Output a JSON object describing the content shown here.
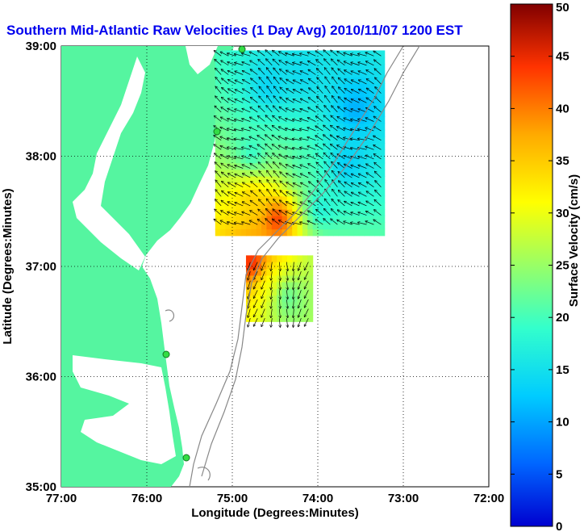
{
  "chart_data": {
    "type": "heatmap",
    "title": "Southern Mid-Atlantic Raw Velocities (1 Day Avg) 2010/11/07 1200 EST",
    "xlabel": "Longitude (Degrees:Minutes)",
    "ylabel": "Latitude (Degrees:Minutes)",
    "x_ticks": [
      "77:00",
      "76:00",
      "75:00",
      "74:00",
      "73:00",
      "72:00"
    ],
    "y_ticks": [
      "39:00",
      "38:00",
      "37:00",
      "36:00",
      "35:00"
    ],
    "xlim": [
      -77,
      -72
    ],
    "ylim": [
      35,
      39
    ],
    "grid": true,
    "colorbar": {
      "label": "Surface Velocity (cm/s)",
      "min": 0,
      "max": 50,
      "ticks": [
        "0",
        "5",
        "10",
        "15",
        "20",
        "25",
        "30",
        "35",
        "40",
        "45",
        "50"
      ]
    },
    "regions": [
      {
        "lon": -74.6,
        "lat": 38.6,
        "speed": 13
      },
      {
        "lon": -74.2,
        "lat": 38.7,
        "speed": 14
      },
      {
        "lon": -73.6,
        "lat": 38.4,
        "speed": 10
      },
      {
        "lon": -74.8,
        "lat": 38.0,
        "speed": 18
      },
      {
        "lon": -74.2,
        "lat": 37.9,
        "speed": 20
      },
      {
        "lon": -73.7,
        "lat": 37.9,
        "speed": 12
      },
      {
        "lon": -74.8,
        "lat": 37.6,
        "speed": 35
      },
      {
        "lon": -74.5,
        "lat": 37.4,
        "speed": 47
      },
      {
        "lon": -74.0,
        "lat": 37.5,
        "speed": 16
      },
      {
        "lon": -74.8,
        "lat": 37.0,
        "speed": 48
      },
      {
        "lon": -74.6,
        "lat": 36.8,
        "speed": 30
      },
      {
        "lon": -74.4,
        "lat": 36.7,
        "speed": 20
      }
    ]
  }
}
